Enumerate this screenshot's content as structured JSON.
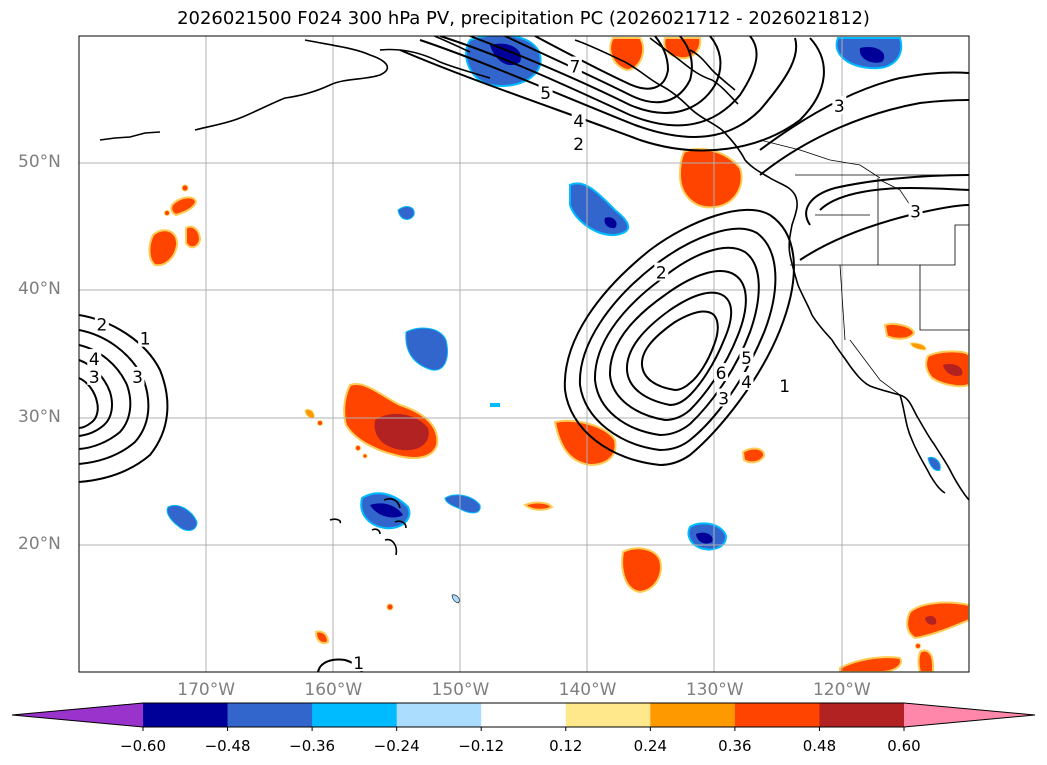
{
  "title": "2026021500 F024 300 hPa PV, precipitation PC (2026021712 - 2026021812)",
  "map": {
    "lon_range": [
      -180,
      -110
    ],
    "lat_range": [
      10,
      60
    ],
    "lat_labels": [
      {
        "lat": 50,
        "label": "50°N"
      },
      {
        "lat": 40,
        "label": "40°N"
      },
      {
        "lat": 30,
        "label": "30°N"
      },
      {
        "lat": 20,
        "label": "20°N"
      }
    ],
    "lon_labels": [
      {
        "lon": -170,
        "label": "170°W"
      },
      {
        "lon": -160,
        "label": "160°W"
      },
      {
        "lon": -150,
        "label": "150°W"
      },
      {
        "lon": -140,
        "label": "140°W"
      },
      {
        "lon": -130,
        "label": "130°W"
      },
      {
        "lon": -120,
        "label": "120°W"
      }
    ],
    "contour_labels": [
      {
        "text": "7",
        "lon": -141,
        "lat": 57.6
      },
      {
        "text": "5",
        "lon": -143.3,
        "lat": 55.5
      },
      {
        "text": "4",
        "lon": -140.7,
        "lat": 53.3
      },
      {
        "text": "2",
        "lon": -140.7,
        "lat": 51.5
      },
      {
        "text": "3",
        "lon": -120.2,
        "lat": 54.5
      },
      {
        "text": "3",
        "lon": -114.2,
        "lat": 46.2
      },
      {
        "text": "2",
        "lon": -134.2,
        "lat": 41.4
      },
      {
        "text": "6",
        "lon": -129.5,
        "lat": 33.5
      },
      {
        "text": "5",
        "lon": -127.5,
        "lat": 34.7
      },
      {
        "text": "4",
        "lon": -127.5,
        "lat": 32.8
      },
      {
        "text": "3",
        "lon": -129.3,
        "lat": 31.5
      },
      {
        "text": "1",
        "lon": -124.5,
        "lat": 32.5
      },
      {
        "text": "2",
        "lon": -178.2,
        "lat": 37.3
      },
      {
        "text": "1",
        "lon": -174.8,
        "lat": 36.2
      },
      {
        "text": "4",
        "lon": -178.8,
        "lat": 34.6
      },
      {
        "text": "3",
        "lon": -178.8,
        "lat": 33.2
      },
      {
        "text": "3",
        "lon": -175.4,
        "lat": 33.2
      },
      {
        "text": "1",
        "lon": -158,
        "lat": 10.7
      }
    ]
  },
  "colorbar": {
    "colors": [
      "#9933cc",
      "#000099",
      "#3366cc",
      "#00bbff",
      "#aaddff",
      "#ffffff",
      "#ffe88c",
      "#ff9900",
      "#ff4400",
      "#b22222",
      "#ff88aa"
    ],
    "tick_labels": [
      "−0.60",
      "−0.48",
      "−0.36",
      "−0.24",
      "−0.12",
      "0.12",
      "0.24",
      "0.36",
      "0.48",
      "0.60"
    ]
  }
}
